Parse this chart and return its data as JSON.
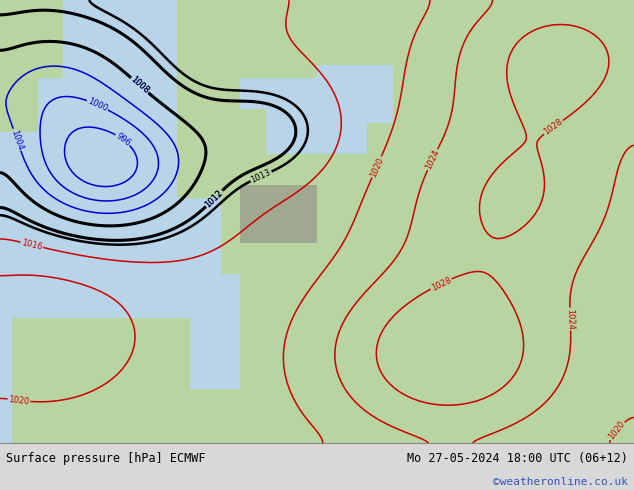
{
  "title_left": "Surface pressure [hPa] ECMWF",
  "title_right": "Mo 27-05-2024 18:00 UTC (06+12)",
  "watermark": "©weatheronline.co.uk",
  "bg_ocean": "#b8d4e8",
  "bg_land": "#b8d4a0",
  "bg_land2": "#c8dca8",
  "bg_gray": "#a0a890",
  "footer_bg": "#d8d8d8",
  "text_color": "#000000",
  "watermark_color": "#3355bb",
  "col_blue": "#0000cc",
  "col_red": "#cc0000",
  "col_black": "#000000",
  "figsize": [
    6.34,
    4.9
  ],
  "dpi": 100
}
